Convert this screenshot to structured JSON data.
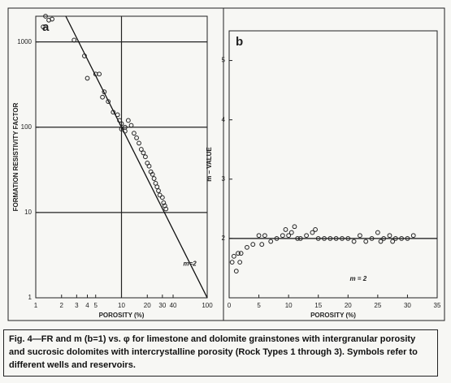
{
  "chart_data": [
    {
      "type": "scatter",
      "title": "a",
      "xlabel": "POROSITY (%)",
      "ylabel": "FORMATION RESISTIVITY FACTOR",
      "xscale": "log",
      "yscale": "log",
      "xlim": [
        1,
        100
      ],
      "ylim": [
        1,
        2000
      ],
      "xticks": [
        1,
        2,
        3,
        4,
        5,
        10,
        20,
        30,
        40,
        100
      ],
      "yticks": [
        1,
        10,
        100,
        1000
      ],
      "grid": true,
      "xgrid": [
        10
      ],
      "color": "#222222",
      "annotation": "m=2",
      "series": [
        {
          "x": [
            1.22,
            1.3,
            1.42,
            1.55,
            2.8,
            3.7,
            4.0,
            5.0,
            5.5,
            6.0,
            6.3,
            7,
            8,
            9,
            9.5,
            10,
            10,
            11,
            11,
            12,
            13,
            14,
            15,
            16,
            17,
            18,
            19,
            20,
            21,
            22,
            23,
            24,
            25,
            26,
            27,
            28,
            30,
            31,
            32,
            33
          ],
          "values": [
            1500,
            2000,
            1800,
            1850,
            1050,
            685,
            375,
            420,
            420,
            225,
            260,
            200,
            150,
            140,
            120,
            110,
            95,
            90,
            100,
            120,
            105,
            85,
            75,
            65,
            55,
            50,
            45,
            38,
            35,
            30,
            28,
            25,
            22,
            20,
            18,
            16,
            15,
            13,
            12,
            11
          ]
        }
      ],
      "fit_line": {
        "x": [
          2.24,
          100
        ],
        "values": [
          2000,
          1
        ]
      }
    },
    {
      "type": "scatter",
      "title": "b",
      "xlabel": "POROSITY (%)",
      "ylabel": "m – VALUE",
      "xscale": "linear",
      "yscale": "linear",
      "xlim": [
        0,
        35
      ],
      "ylim": [
        1,
        5.5
      ],
      "xticks": [
        0,
        5,
        10,
        15,
        20,
        25,
        30,
        35
      ],
      "yticks": [
        2,
        3,
        4,
        5
      ],
      "grid": false,
      "xgrid": [],
      "color": "#222222",
      "annotation": "m = 2",
      "series": [
        {
          "x": [
            0.5,
            0.8,
            1.2,
            1.5,
            1.8,
            2,
            3,
            4,
            5,
            5.5,
            6,
            7,
            8,
            9,
            9.5,
            10,
            10.5,
            11,
            11.5,
            12,
            13,
            14,
            14.5,
            15,
            16,
            17,
            18,
            19,
            20,
            21,
            22,
            23,
            24,
            25,
            25.5,
            26,
            27,
            27.5,
            28,
            29,
            30,
            31
          ],
          "values": [
            1.6,
            1.7,
            1.45,
            1.75,
            1.6,
            1.75,
            1.85,
            1.9,
            2.05,
            1.9,
            2.05,
            1.95,
            2.0,
            2.05,
            2.15,
            2.05,
            2.1,
            2.2,
            2.0,
            2.0,
            2.05,
            2.1,
            2.15,
            2.0,
            2.0,
            2.0,
            2.0,
            2.0,
            2.0,
            1.95,
            2.05,
            1.95,
            2.0,
            2.1,
            1.95,
            2.0,
            2.05,
            1.95,
            2.0,
            2.0,
            2.0,
            2.05
          ]
        }
      ],
      "fit_line": {
        "x": [
          0,
          35
        ],
        "values": [
          2,
          2
        ]
      }
    }
  ],
  "caption": "Fig. 4—FR and m (b=1) vs. φ for limestone and dolomite grainstones with intergranular porosity and sucrosic dolomites with intercrystalline porosity (Rock Types 1 through 3). Symbols refer to different wells and reservoirs."
}
